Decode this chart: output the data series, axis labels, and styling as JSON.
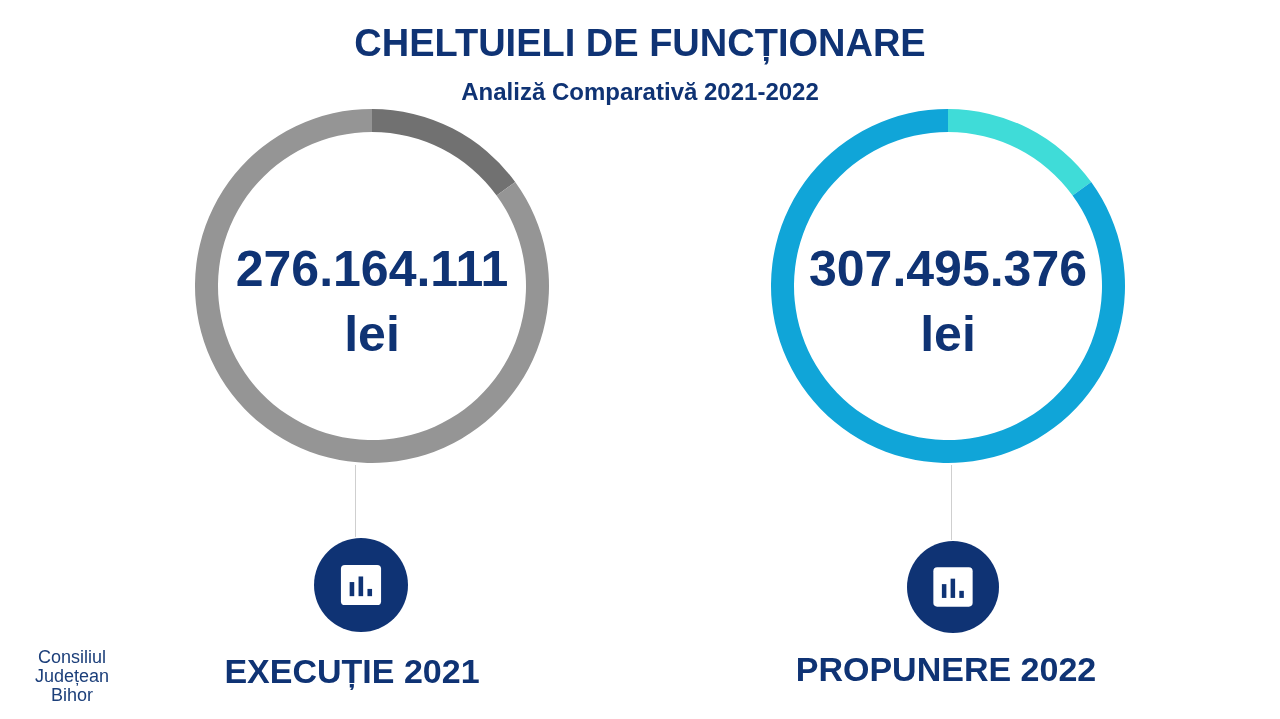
{
  "chart_data": [
    {
      "type": "donut",
      "title": "CHELTUIELI DE FUNCȚIONARE",
      "subtitle": "Analiză Comparativă 2021-2022",
      "categories": [
        null,
        null
      ],
      "values": [
        15,
        85
      ],
      "colors": [
        "#717171",
        "#959595"
      ],
      "annotations": [
        "276.164.111 lei",
        "Consiliul Județean Bihor"
      ],
      "xlabel": "EXECUȚIE 2021"
    },
    {
      "type": "donut",
      "categories": [
        null,
        null
      ],
      "values": [
        15,
        85
      ],
      "colors": [
        "#3fdcd8",
        "#10a5d8"
      ],
      "annotations": [
        "307.495.376 lei"
      ],
      "xlabel": "PROPUNERE 2022"
    }
  ]
}
